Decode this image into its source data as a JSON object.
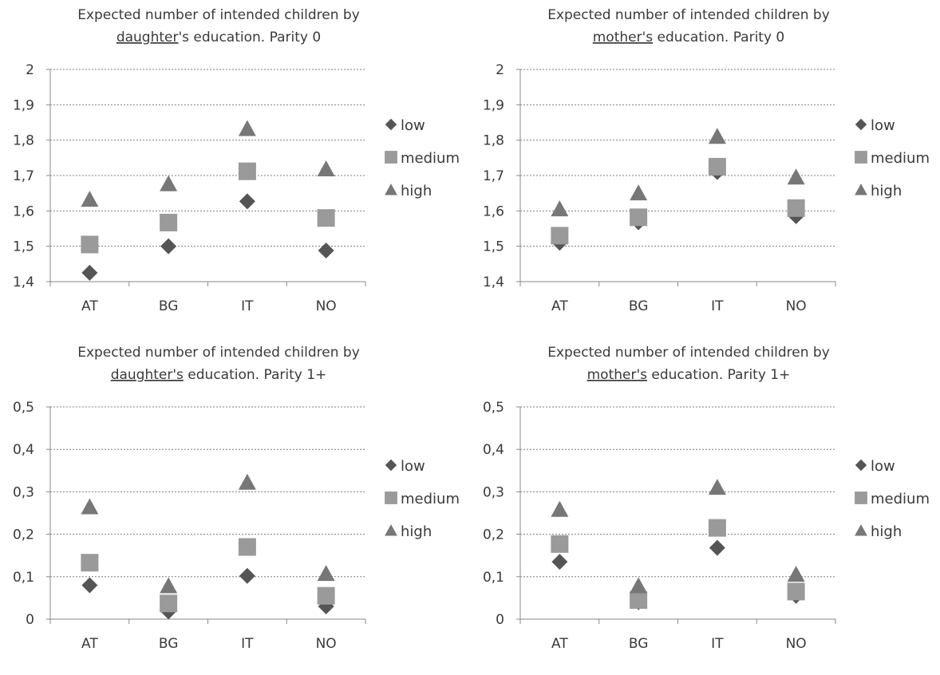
{
  "chart_data": [
    {
      "type": "scatter",
      "title_line1": "Expected number of intended children by",
      "title_line2_underlined": "daughter",
      "title_line2_rest": "'s education. Parity 0",
      "categories": [
        "AT",
        "BG",
        "IT",
        "NO"
      ],
      "ylim": [
        1.4,
        2.0
      ],
      "yticks": [
        "1,4",
        "1,5",
        "1,6",
        "1,7",
        "1,8",
        "1,9",
        "2"
      ],
      "grid": true,
      "legend_position": "right",
      "series": [
        {
          "name": "low",
          "marker": "diamond",
          "values": [
            1.425,
            1.5,
            1.627,
            1.488
          ]
        },
        {
          "name": "medium",
          "marker": "square",
          "values": [
            1.505,
            1.567,
            1.712,
            1.58
          ]
        },
        {
          "name": "high",
          "marker": "triangle",
          "values": [
            1.632,
            1.676,
            1.832,
            1.718
          ]
        }
      ]
    },
    {
      "type": "scatter",
      "title_line1": "Expected number of intended children by",
      "title_line2_underlined": "mother's",
      "title_line2_rest": " education. Parity 0",
      "categories": [
        "AT",
        "BG",
        "IT",
        "NO"
      ],
      "ylim": [
        1.4,
        2.0
      ],
      "yticks": [
        "1,4",
        "1,5",
        "1,6",
        "1,7",
        "1,8",
        "1,9",
        "2"
      ],
      "grid": true,
      "legend_position": "right",
      "series": [
        {
          "name": "low",
          "marker": "diamond",
          "values": [
            1.51,
            1.568,
            1.71,
            1.585
          ]
        },
        {
          "name": "medium",
          "marker": "square",
          "values": [
            1.53,
            1.582,
            1.725,
            1.608
          ]
        },
        {
          "name": "high",
          "marker": "triangle",
          "values": [
            1.605,
            1.65,
            1.81,
            1.695
          ]
        }
      ]
    },
    {
      "type": "scatter",
      "title_line1": "Expected number of intended children by",
      "title_line2_underlined": "daughter's",
      "title_line2_rest": " education. Parity 1+",
      "categories": [
        "AT",
        "BG",
        "IT",
        "NO"
      ],
      "ylim": [
        0,
        0.5
      ],
      "yticks": [
        "0",
        "0,1",
        "0,2",
        "0,3",
        "0,4",
        "0,5"
      ],
      "grid": true,
      "legend_position": "right",
      "series": [
        {
          "name": "low",
          "marker": "diamond",
          "values": [
            0.08,
            0.018,
            0.102,
            0.03
          ]
        },
        {
          "name": "medium",
          "marker": "square",
          "values": [
            0.133,
            0.037,
            0.17,
            0.055
          ]
        },
        {
          "name": "high",
          "marker": "triangle",
          "values": [
            0.264,
            0.078,
            0.322,
            0.107
          ]
        }
      ]
    },
    {
      "type": "scatter",
      "title_line1": "Expected number of intended children by",
      "title_line2_underlined": "mother's",
      "title_line2_rest": " education. Parity 1+",
      "categories": [
        "AT",
        "BG",
        "IT",
        "NO"
      ],
      "ylim": [
        0,
        0.5
      ],
      "yticks": [
        "0",
        "0,1",
        "0,2",
        "0,3",
        "0,4",
        "0,5"
      ],
      "grid": true,
      "legend_position": "right",
      "series": [
        {
          "name": "low",
          "marker": "diamond",
          "values": [
            0.135,
            0.04,
            0.168,
            0.055
          ]
        },
        {
          "name": "medium",
          "marker": "square",
          "values": [
            0.177,
            0.045,
            0.215,
            0.065
          ]
        },
        {
          "name": "high",
          "marker": "triangle",
          "values": [
            0.258,
            0.078,
            0.31,
            0.105
          ]
        }
      ]
    }
  ]
}
